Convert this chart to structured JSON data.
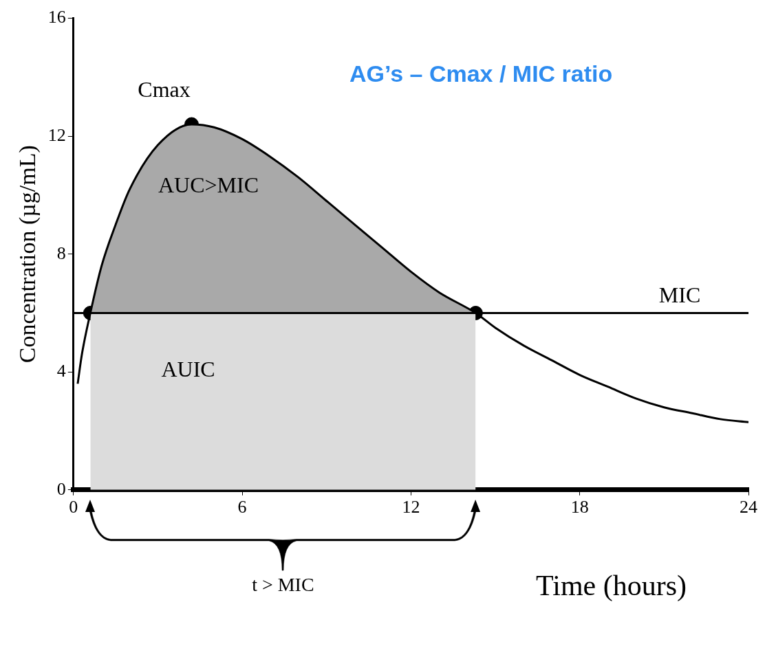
{
  "chart_data": {
    "type": "line",
    "title": "AG’s – Cmax / MIC ratio",
    "xlabel": "Time (hours)",
    "ylabel": "Concentration (µg/mL)",
    "xlim": [
      0,
      24
    ],
    "xticks": [
      0,
      6,
      12,
      18,
      24
    ],
    "ylim": [
      0,
      16
    ],
    "yticks": [
      0,
      4,
      8,
      12,
      16
    ],
    "grid": false,
    "legend": false,
    "series": [
      {
        "color": "#000000",
        "marker": "none",
        "x": [
          0.15,
          0.3,
          0.6,
          1,
          1.5,
          2,
          3,
          4.2,
          5,
          6,
          7,
          8,
          9,
          10,
          11,
          12,
          13,
          14.3,
          15,
          16,
          17,
          18,
          19,
          20,
          21,
          22,
          23,
          24
        ],
        "values": [
          3.6,
          4.6,
          6.0,
          7.6,
          9.0,
          10.2,
          11.7,
          12.4,
          12.3,
          11.9,
          11.3,
          10.6,
          9.8,
          9.0,
          8.2,
          7.4,
          6.7,
          6.0,
          5.5,
          4.9,
          4.4,
          3.9,
          3.5,
          3.1,
          2.8,
          2.6,
          2.4,
          2.3
        ]
      },
      {
        "type": "area",
        "color": "#a9a9a9",
        "x": [
          0.6,
          1,
          1.5,
          2,
          3,
          4.2,
          5,
          6,
          7,
          8,
          9,
          10,
          11,
          12,
          13,
          14.3
        ],
        "values": [
          6.0,
          7.6,
          9.0,
          10.2,
          11.7,
          12.4,
          12.3,
          11.9,
          11.3,
          10.6,
          9.8,
          9.0,
          8.2,
          7.4,
          6.7,
          6.0
        ]
      },
      {
        "type": "area",
        "color": "#dcdcdc",
        "x": [
          0.6,
          14.3
        ],
        "values": [
          6,
          6
        ]
      },
      {
        "type": "scatter",
        "color": "#000000",
        "marker": "circle",
        "x": [
          0.6,
          4.2,
          14.3
        ],
        "values": [
          6,
          12.4,
          6
        ]
      }
    ],
    "ref_lines": [
      {
        "axis": "y",
        "value": 6,
        "label": "MIC",
        "color": "#000000"
      }
    ],
    "annotations": [
      {
        "text": "Cmax",
        "x": 4.2,
        "y": 12.4
      },
      "AUC>MIC",
      "AUIC",
      "t > MIC"
    ]
  }
}
